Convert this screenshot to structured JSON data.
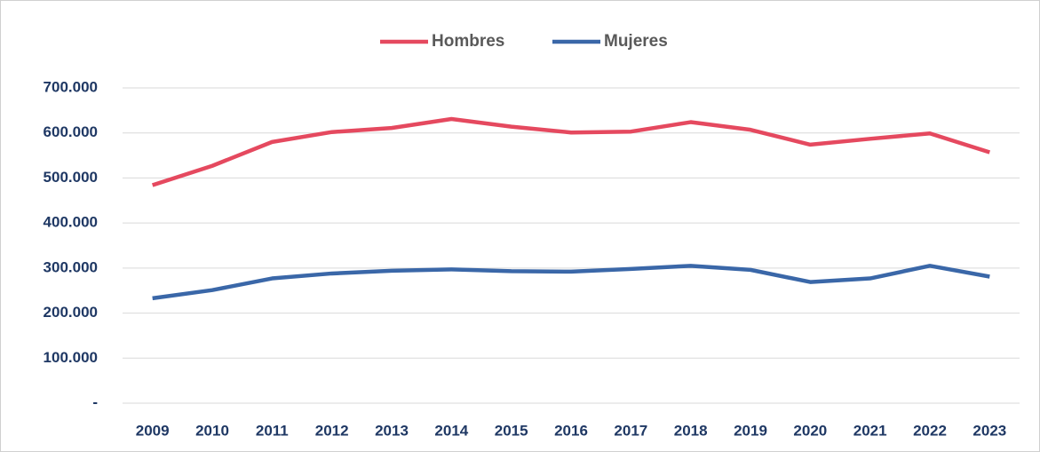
{
  "chart_data": {
    "type": "line",
    "categories": [
      "2009",
      "2010",
      "2011",
      "2012",
      "2013",
      "2014",
      "2015",
      "2016",
      "2017",
      "2018",
      "2019",
      "2020",
      "2021",
      "2022",
      "2023"
    ],
    "series": [
      {
        "name": "Hombres",
        "color": "#e5495f",
        "values": [
          484000,
          527000,
          580000,
          602000,
          611000,
          631000,
          614000,
          601000,
          603000,
          624000,
          607000,
          574000,
          587000,
          599000,
          557000
        ]
      },
      {
        "name": "Mujeres",
        "color": "#3a67a8",
        "values": [
          233000,
          251000,
          277000,
          288000,
          294000,
          297000,
          293000,
          292000,
          298000,
          305000,
          296000,
          269000,
          277000,
          305000,
          281000
        ]
      }
    ],
    "ylim": [
      0,
      700000
    ],
    "yticks": [
      {
        "value": 0,
        "label": "-"
      },
      {
        "value": 100000,
        "label": "100.000"
      },
      {
        "value": 200000,
        "label": "200.000"
      },
      {
        "value": 300000,
        "label": "300.000"
      },
      {
        "value": 400000,
        "label": "400.000"
      },
      {
        "value": 500000,
        "label": "500.000"
      },
      {
        "value": 600000,
        "label": "600.000"
      },
      {
        "value": 700000,
        "label": "700.000"
      }
    ],
    "grid": true,
    "legend": "top"
  }
}
